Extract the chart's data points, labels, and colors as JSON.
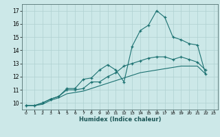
{
  "xlabel": "Humidex (Indice chaleur)",
  "ylabel": "",
  "background_color": "#cce8e8",
  "grid_color": "#aed0d0",
  "line_color": "#1a7070",
  "xlim": [
    -0.5,
    23.5
  ],
  "ylim": [
    9.5,
    17.5
  ],
  "xticks": [
    0,
    1,
    2,
    3,
    4,
    5,
    6,
    7,
    8,
    9,
    10,
    11,
    12,
    13,
    14,
    15,
    16,
    17,
    18,
    19,
    20,
    21,
    22,
    23
  ],
  "yticks": [
    10,
    11,
    12,
    13,
    14,
    15,
    16,
    17
  ],
  "series": [
    {
      "x": [
        0,
        1,
        2,
        3,
        4,
        5,
        6,
        7,
        8,
        9,
        10,
        11,
        12,
        13,
        14,
        15,
        16,
        17,
        18,
        19,
        20,
        21,
        22
      ],
      "y": [
        9.8,
        9.8,
        10.0,
        10.3,
        10.5,
        11.1,
        11.1,
        11.8,
        11.9,
        12.5,
        12.9,
        12.5,
        11.6,
        14.3,
        15.5,
        15.9,
        17.0,
        16.5,
        15.0,
        14.8,
        14.5,
        14.4,
        12.2
      ],
      "marker": "+"
    },
    {
      "x": [
        0,
        1,
        2,
        3,
        4,
        5,
        6,
        7,
        8,
        9,
        10,
        11,
        12,
        13,
        14,
        15,
        16,
        17,
        18,
        19,
        20,
        21,
        22
      ],
      "y": [
        9.8,
        9.8,
        10.0,
        10.3,
        10.5,
        11.0,
        11.0,
        11.1,
        11.6,
        11.6,
        12.0,
        12.3,
        12.8,
        13.0,
        13.2,
        13.4,
        13.5,
        13.5,
        13.3,
        13.5,
        13.3,
        13.1,
        12.5
      ],
      "marker": "+"
    },
    {
      "x": [
        0,
        1,
        2,
        3,
        4,
        5,
        6,
        7,
        8,
        9,
        10,
        11,
        12,
        13,
        14,
        15,
        16,
        17,
        18,
        19,
        20,
        21,
        22
      ],
      "y": [
        9.8,
        9.8,
        9.9,
        10.2,
        10.4,
        10.7,
        10.8,
        10.9,
        11.1,
        11.3,
        11.5,
        11.7,
        11.9,
        12.1,
        12.3,
        12.4,
        12.5,
        12.6,
        12.7,
        12.8,
        12.8,
        12.8,
        12.2
      ],
      "marker": null
    }
  ]
}
